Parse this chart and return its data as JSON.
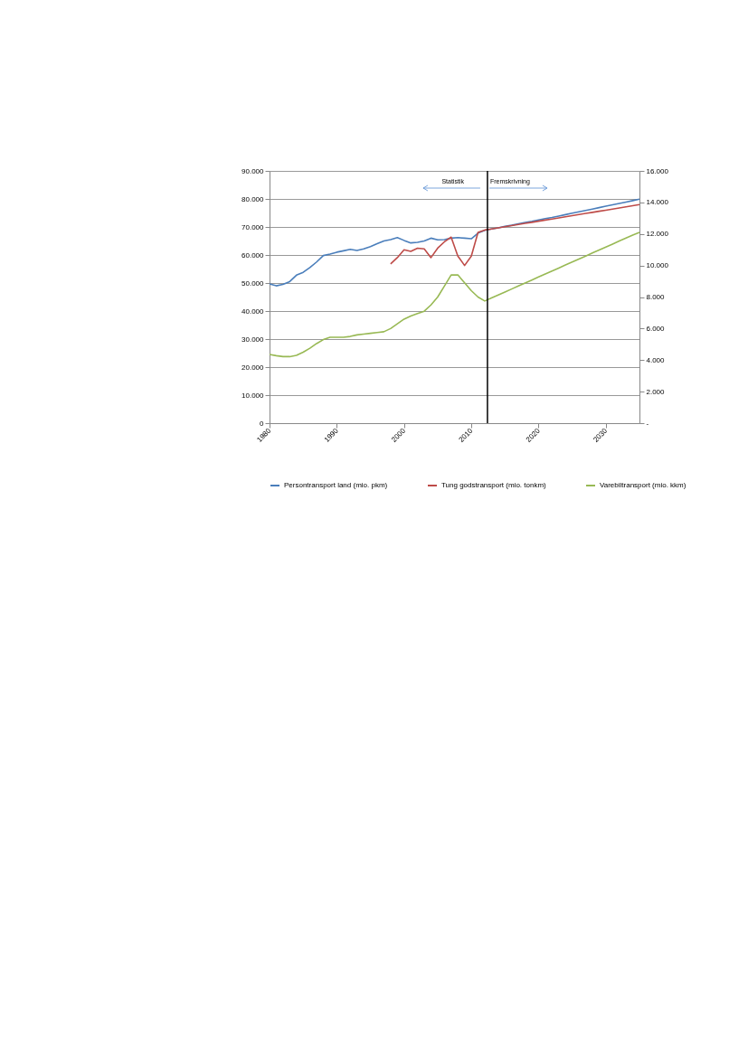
{
  "chart_data": {
    "type": "line",
    "x": [
      1980,
      1981,
      1982,
      1983,
      1984,
      1985,
      1986,
      1987,
      1988,
      1989,
      1990,
      1991,
      1992,
      1993,
      1994,
      1995,
      1996,
      1997,
      1998,
      1999,
      2000,
      2001,
      2002,
      2003,
      2004,
      2005,
      2006,
      2007,
      2008,
      2009,
      2010,
      2011,
      2012,
      2013,
      2014,
      2015,
      2016,
      2017,
      2018,
      2019,
      2020,
      2021,
      2022,
      2023,
      2024,
      2025,
      2026,
      2027,
      2028,
      2029,
      2030,
      2031,
      2032,
      2033,
      2034,
      2035
    ],
    "series": [
      {
        "name": "Persontransport land (mio. pkm)",
        "color": "#4a7ebb",
        "values": [
          49700,
          49000,
          49500,
          50500,
          52800,
          53800,
          55500,
          57500,
          59800,
          60300,
          61000,
          61500,
          62000,
          61600,
          62200,
          63000,
          64000,
          65000,
          65500,
          66200,
          65200,
          64300,
          64500,
          65000,
          66000,
          65400,
          65500,
          66000,
          66200,
          66000,
          65800,
          67800,
          68800,
          69300,
          69700,
          70200,
          70600,
          71100,
          71600,
          72000,
          72500,
          73000,
          73400,
          73900,
          74400,
          74900,
          75400,
          75900,
          76400,
          76900,
          77400,
          77900,
          78400,
          78900,
          79400,
          79900
        ]
      },
      {
        "name": "Tung godstransport (mio. tonkm)",
        "color": "#be4b48",
        "axis": "y2",
        "values": [
          null,
          null,
          null,
          null,
          null,
          null,
          null,
          null,
          null,
          null,
          null,
          null,
          null,
          null,
          null,
          null,
          null,
          null,
          10100,
          10500,
          11000,
          10900,
          11100,
          11050,
          10500,
          11100,
          11500,
          11800,
          10600,
          10000,
          10600,
          12100,
          12250,
          12320,
          12390,
          12460,
          12530,
          12600,
          12670,
          12740,
          12810,
          12880,
          12950,
          13020,
          13090,
          13160,
          13230,
          13300,
          13370,
          13440,
          13510,
          13580,
          13650,
          13720,
          13790,
          13860
        ]
      },
      {
        "name": "Varebiltransport (mio. kkm)",
        "color": "#98b954",
        "axis": "y2",
        "values": [
          4360,
          4280,
          4220,
          4220,
          4300,
          4500,
          4750,
          5050,
          5300,
          5450,
          5450,
          5450,
          5500,
          5600,
          5650,
          5700,
          5750,
          5800,
          6000,
          6300,
          6600,
          6800,
          6950,
          7100,
          7500,
          8000,
          8700,
          9400,
          9400,
          8900,
          8400,
          8000,
          7750,
          7940,
          8130,
          8320,
          8510,
          8700,
          8890,
          9080,
          9270,
          9460,
          9650,
          9840,
          10030,
          10220,
          10410,
          10600,
          10790,
          10980,
          11170,
          11360,
          11550,
          11740,
          11930,
          12100
        ]
      }
    ],
    "xlim": [
      1980,
      2035
    ],
    "xticks": [
      1980,
      1990,
      2000,
      2010,
      2020,
      2030
    ],
    "ylim": [
      0,
      90000
    ],
    "yticks": [
      {
        "value": 0,
        "label": "0"
      },
      {
        "value": 10000,
        "label": "10.000"
      },
      {
        "value": 20000,
        "label": "20.000"
      },
      {
        "value": 30000,
        "label": "30.000"
      },
      {
        "value": 40000,
        "label": "40.000"
      },
      {
        "value": 50000,
        "label": "50.000"
      },
      {
        "value": 60000,
        "label": "60.000"
      },
      {
        "value": 70000,
        "label": "70.000"
      },
      {
        "value": 80000,
        "label": "80.000"
      },
      {
        "value": 90000,
        "label": "90.000"
      }
    ],
    "y2lim": [
      0,
      16000
    ],
    "y2ticks": [
      {
        "value": 0,
        "label": "-"
      },
      {
        "value": 2000,
        "label": "2.000"
      },
      {
        "value": 4000,
        "label": "4.000"
      },
      {
        "value": 6000,
        "label": "6.000"
      },
      {
        "value": 8000,
        "label": "8.000"
      },
      {
        "value": 10000,
        "label": "10.000"
      },
      {
        "value": 12000,
        "label": "12.000"
      },
      {
        "value": 14000,
        "label": "14.000"
      },
      {
        "value": 16000,
        "label": "16.000"
      }
    ],
    "ref_lines": [
      {
        "axis": "x",
        "value": 2012.4,
        "color": "#000000"
      }
    ],
    "annotations": [
      "Statistik",
      "Fremskrivning"
    ],
    "grid": "y",
    "legend": "bottom",
    "marker": "none",
    "line_style": "solid"
  }
}
